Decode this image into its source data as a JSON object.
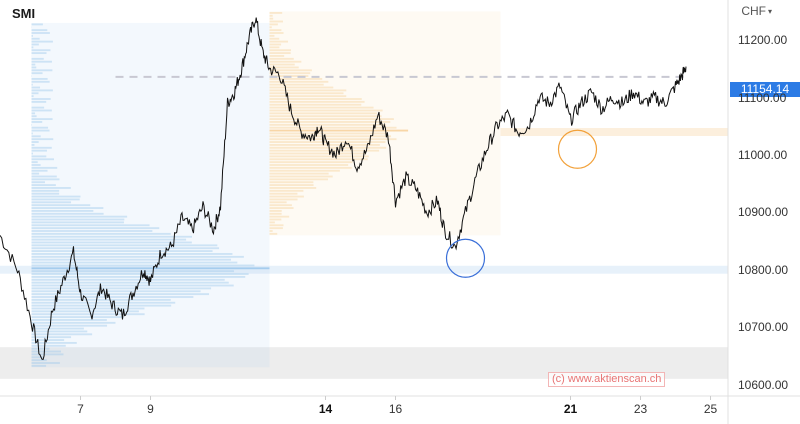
{
  "symbol": "SMI",
  "currency": {
    "label": "CHF",
    "chevron_icon": "chevron-down-icon"
  },
  "last_price": "11154.14",
  "watermark": "(c) www.aktienscan.ch",
  "colors": {
    "price_line": "#111111",
    "accent": "#2c7be5",
    "volume_profile_blue": "#9fc9ec",
    "volume_profile_orange": "#f7d29e",
    "highlight_circle_blue": "#3a6fd8",
    "highlight_circle_orange": "#f2a13a"
  },
  "chart_data": {
    "type": "line",
    "y_tick_labels": [
      "11200.00",
      "11100.00",
      "11000.00",
      "10900.00",
      "10800.00",
      "10700.00",
      "10600.00"
    ],
    "x_tick_labels": [
      {
        "label": "7",
        "major": false
      },
      {
        "label": "9",
        "major": false
      },
      {
        "label": "14",
        "major": true
      },
      {
        "label": "16",
        "major": false
      },
      {
        "label": "21",
        "major": true
      },
      {
        "label": "23",
        "major": false
      },
      {
        "label": "25",
        "major": false
      }
    ],
    "ylim": [
      10580,
      11270
    ],
    "x_range_days": [
      4.7,
      25.5
    ],
    "series": [
      {
        "x": [
          4.7,
          5.2,
          5.6,
          5.9,
          6.2,
          6.5,
          6.8,
          7.0,
          7.3,
          7.6,
          7.9,
          8.2,
          8.5,
          8.8,
          9.0,
          9.3,
          9.6,
          9.9,
          10.2,
          10.5,
          10.8,
          11.0,
          11.2,
          11.4,
          11.6,
          11.8,
          12.0,
          12.2,
          12.4,
          12.7,
          13.0,
          13.3,
          13.6,
          13.8,
          14.0,
          14.3,
          14.6,
          14.9,
          15.2,
          15.5,
          15.8,
          16.0,
          16.3,
          16.6,
          16.9,
          17.2,
          17.4,
          17.7,
          18.0,
          18.3,
          18.6,
          18.9,
          19.2,
          19.5,
          19.8,
          20.1,
          20.4,
          20.7,
          21.0,
          21.3,
          21.6,
          21.9,
          22.2,
          22.5,
          22.8,
          23.1,
          23.4,
          23.7,
          24.0,
          24.2,
          24.3
        ],
        "y": [
          10860,
          10800,
          10710,
          10640,
          10730,
          10780,
          10830,
          10760,
          10720,
          10770,
          10740,
          10720,
          10760,
          10800,
          10780,
          10830,
          10840,
          10890,
          10870,
          10910,
          10870,
          10910,
          11090,
          11110,
          11150,
          11200,
          11240,
          11180,
          11150,
          11140,
          11080,
          11040,
          11030,
          11050,
          11020,
          11000,
          11030,
          10980,
          11010,
          11070,
          11030,
          10920,
          10960,
          10940,
          10900,
          10920,
          10870,
          10840,
          10900,
          10960,
          11010,
          11050,
          11070,
          11040,
          11050,
          11100,
          11090,
          11120,
          11060,
          11090,
          11110,
          11080,
          11100,
          11090,
          11110,
          11090,
          11100,
          11090,
          11120,
          11140,
          11154
        ]
      }
    ],
    "volume_profiles": [
      {
        "color": "blue",
        "x_range": [
          5.6,
          12.4
        ],
        "poc_price": 10800
      },
      {
        "color": "orange",
        "x_range": [
          12.4,
          19.0
        ],
        "poc_price": 11040
      }
    ],
    "price_zones": [
      {
        "color": "blue",
        "price": 10800
      },
      {
        "color": "orange",
        "price": 11040
      },
      {
        "color": "gray",
        "price_range": [
          10610,
          10665
        ]
      }
    ],
    "reference_line": {
      "price": 11136,
      "style": "dashed"
    },
    "highlight_circles": [
      {
        "color": "blue",
        "x": 18.0,
        "price": 10820
      },
      {
        "color": "orange",
        "x": 21.2,
        "price": 11010
      }
    ],
    "grid": false
  }
}
